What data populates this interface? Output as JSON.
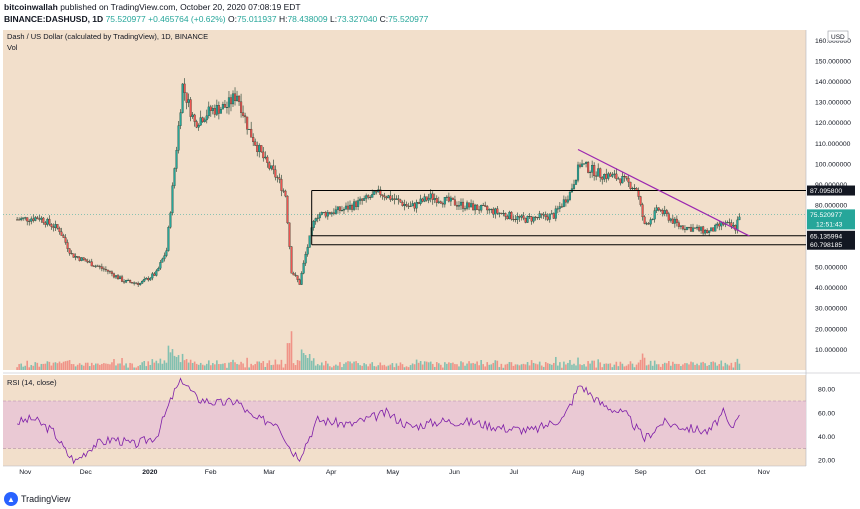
{
  "header": {
    "publisher": "bitcoinwallah",
    "published_text": " published on TradingView.com, October 20, 2020 07:08:19 EDT",
    "symbol": "BINANCE:DASHUSD, 1D",
    "last": "75.520977",
    "change": "+0.465764 (+0.62%)",
    "open_label": "O:",
    "open": "75.011937",
    "high_label": "H:",
    "high": "78.438009",
    "low_label": "L:",
    "low": "73.327040",
    "close_label": "C:",
    "close": "75.520977"
  },
  "footer": {
    "brand": "TradingView"
  },
  "colors": {
    "background": "#f2dfcb",
    "up": "#26a69a",
    "down": "#ef5350",
    "candle_body": "#1b3a2b",
    "trendline": "#9c27b0",
    "rsi_line": "#7e1ea8",
    "rsi_band": "#e9c6d6"
  },
  "chart_data": [
    {
      "type": "candlestick",
      "title": "Dash / US Dollar (calculated by TradingView), 1D, BINANCE",
      "subtitle": "Vol",
      "currency_label": "USD",
      "ylim": [
        0,
        165
      ],
      "y_ticks": [
        10,
        20,
        30,
        40,
        50,
        60,
        70,
        80,
        90,
        100,
        110,
        120,
        130,
        140,
        150,
        160
      ],
      "y_tick_labels": [
        "10.000000",
        "20.000000",
        "30.000000",
        "40.000000",
        "50.000000",
        "60.000000",
        "70.000000",
        "80.000000",
        "90.000000",
        "100.000000",
        "110.000000",
        "120.000000",
        "130.000000",
        "140.000000",
        "150.000000",
        "160.000000"
      ],
      "x_ticks": [
        "Nov",
        "Dec",
        "2020",
        "Feb",
        "Mar",
        "Apr",
        "May",
        "Jun",
        "Jul",
        "Aug",
        "Sep",
        "Oct",
        "Nov"
      ],
      "price_path": [
        [
          "2019-10-28",
          73
        ],
        [
          "2019-11-08",
          74
        ],
        [
          "2019-11-18",
          68
        ],
        [
          "2019-11-24",
          56
        ],
        [
          "2019-12-03",
          52
        ],
        [
          "2019-12-12",
          48
        ],
        [
          "2019-12-20",
          43
        ],
        [
          "2019-12-28",
          42
        ],
        [
          "2020-01-05",
          47
        ],
        [
          "2020-01-10",
          58
        ],
        [
          "2020-01-14",
          98
        ],
        [
          "2020-01-18",
          138
        ],
        [
          "2020-01-24",
          120
        ],
        [
          "2020-02-01",
          126
        ],
        [
          "2020-02-09",
          128
        ],
        [
          "2020-02-14",
          134
        ],
        [
          "2020-02-20",
          116
        ],
        [
          "2020-02-28",
          101
        ],
        [
          "2020-03-05",
          93
        ],
        [
          "2020-03-09",
          85
        ],
        [
          "2020-03-12",
          48
        ],
        [
          "2020-03-16",
          42
        ],
        [
          "2020-03-19",
          56
        ],
        [
          "2020-03-24",
          75
        ],
        [
          "2020-04-07",
          78
        ],
        [
          "2020-04-25",
          86
        ],
        [
          "2020-05-10",
          79
        ],
        [
          "2020-05-20",
          84
        ],
        [
          "2020-06-05",
          80
        ],
        [
          "2020-06-20",
          77
        ],
        [
          "2020-07-05",
          73
        ],
        [
          "2020-07-20",
          75
        ],
        [
          "2020-07-28",
          86
        ],
        [
          "2020-08-02",
          100
        ],
        [
          "2020-08-12",
          95
        ],
        [
          "2020-08-22",
          93
        ],
        [
          "2020-08-30",
          88
        ],
        [
          "2020-09-03",
          70
        ],
        [
          "2020-09-10",
          78
        ],
        [
          "2020-09-20",
          70
        ],
        [
          "2020-10-05",
          67
        ],
        [
          "2020-10-12",
          71
        ],
        [
          "2020-10-18",
          69
        ],
        [
          "2020-10-20",
          75.5
        ]
      ],
      "horizontal_levels": [
        {
          "value": 87.0958,
          "label": "87.095800"
        },
        {
          "value": 65.135994,
          "label": "65.135994"
        },
        {
          "value": 60.798185,
          "label": "60.798185"
        }
      ],
      "trendline": {
        "from": [
          "2020-08-01",
          107
        ],
        "to": [
          "2020-10-25",
          65
        ]
      },
      "last_price": {
        "value": 75.520977,
        "label": "75.520977",
        "countdown": "12:51:43"
      }
    },
    {
      "type": "line",
      "title": "RSI (14, close)",
      "ylim": [
        15,
        92
      ],
      "y_ticks": [
        20,
        40,
        60,
        80
      ],
      "y_tick_labels": [
        "20.00",
        "40.00",
        "60.00",
        "80.00"
      ],
      "band": [
        30,
        70
      ],
      "values": [
        [
          "2019-10-28",
          52
        ],
        [
          "2019-11-05",
          55
        ],
        [
          "2019-11-15",
          44
        ],
        [
          "2019-11-22",
          25
        ],
        [
          "2019-11-26",
          19
        ],
        [
          "2019-12-05",
          33
        ],
        [
          "2019-12-15",
          38
        ],
        [
          "2019-12-25",
          33
        ],
        [
          "2020-01-05",
          40
        ],
        [
          "2020-01-14",
          78
        ],
        [
          "2020-01-18",
          88
        ],
        [
          "2020-01-25",
          72
        ],
        [
          "2020-02-05",
          68
        ],
        [
          "2020-02-14",
          70
        ],
        [
          "2020-02-22",
          55
        ],
        [
          "2020-03-05",
          52
        ],
        [
          "2020-03-12",
          28
        ],
        [
          "2020-03-16",
          23
        ],
        [
          "2020-03-25",
          54
        ],
        [
          "2020-04-10",
          50
        ],
        [
          "2020-04-28",
          60
        ],
        [
          "2020-05-10",
          48
        ],
        [
          "2020-05-25",
          53
        ],
        [
          "2020-06-10",
          52
        ],
        [
          "2020-06-25",
          47
        ],
        [
          "2020-07-10",
          45
        ],
        [
          "2020-07-25",
          56
        ],
        [
          "2020-08-02",
          84
        ],
        [
          "2020-08-12",
          68
        ],
        [
          "2020-08-25",
          58
        ],
        [
          "2020-09-03",
          38
        ],
        [
          "2020-09-12",
          52
        ],
        [
          "2020-09-25",
          47
        ],
        [
          "2020-10-05",
          44
        ],
        [
          "2020-10-12",
          60
        ],
        [
          "2020-10-16",
          45
        ],
        [
          "2020-10-20",
          62
        ]
      ]
    }
  ]
}
